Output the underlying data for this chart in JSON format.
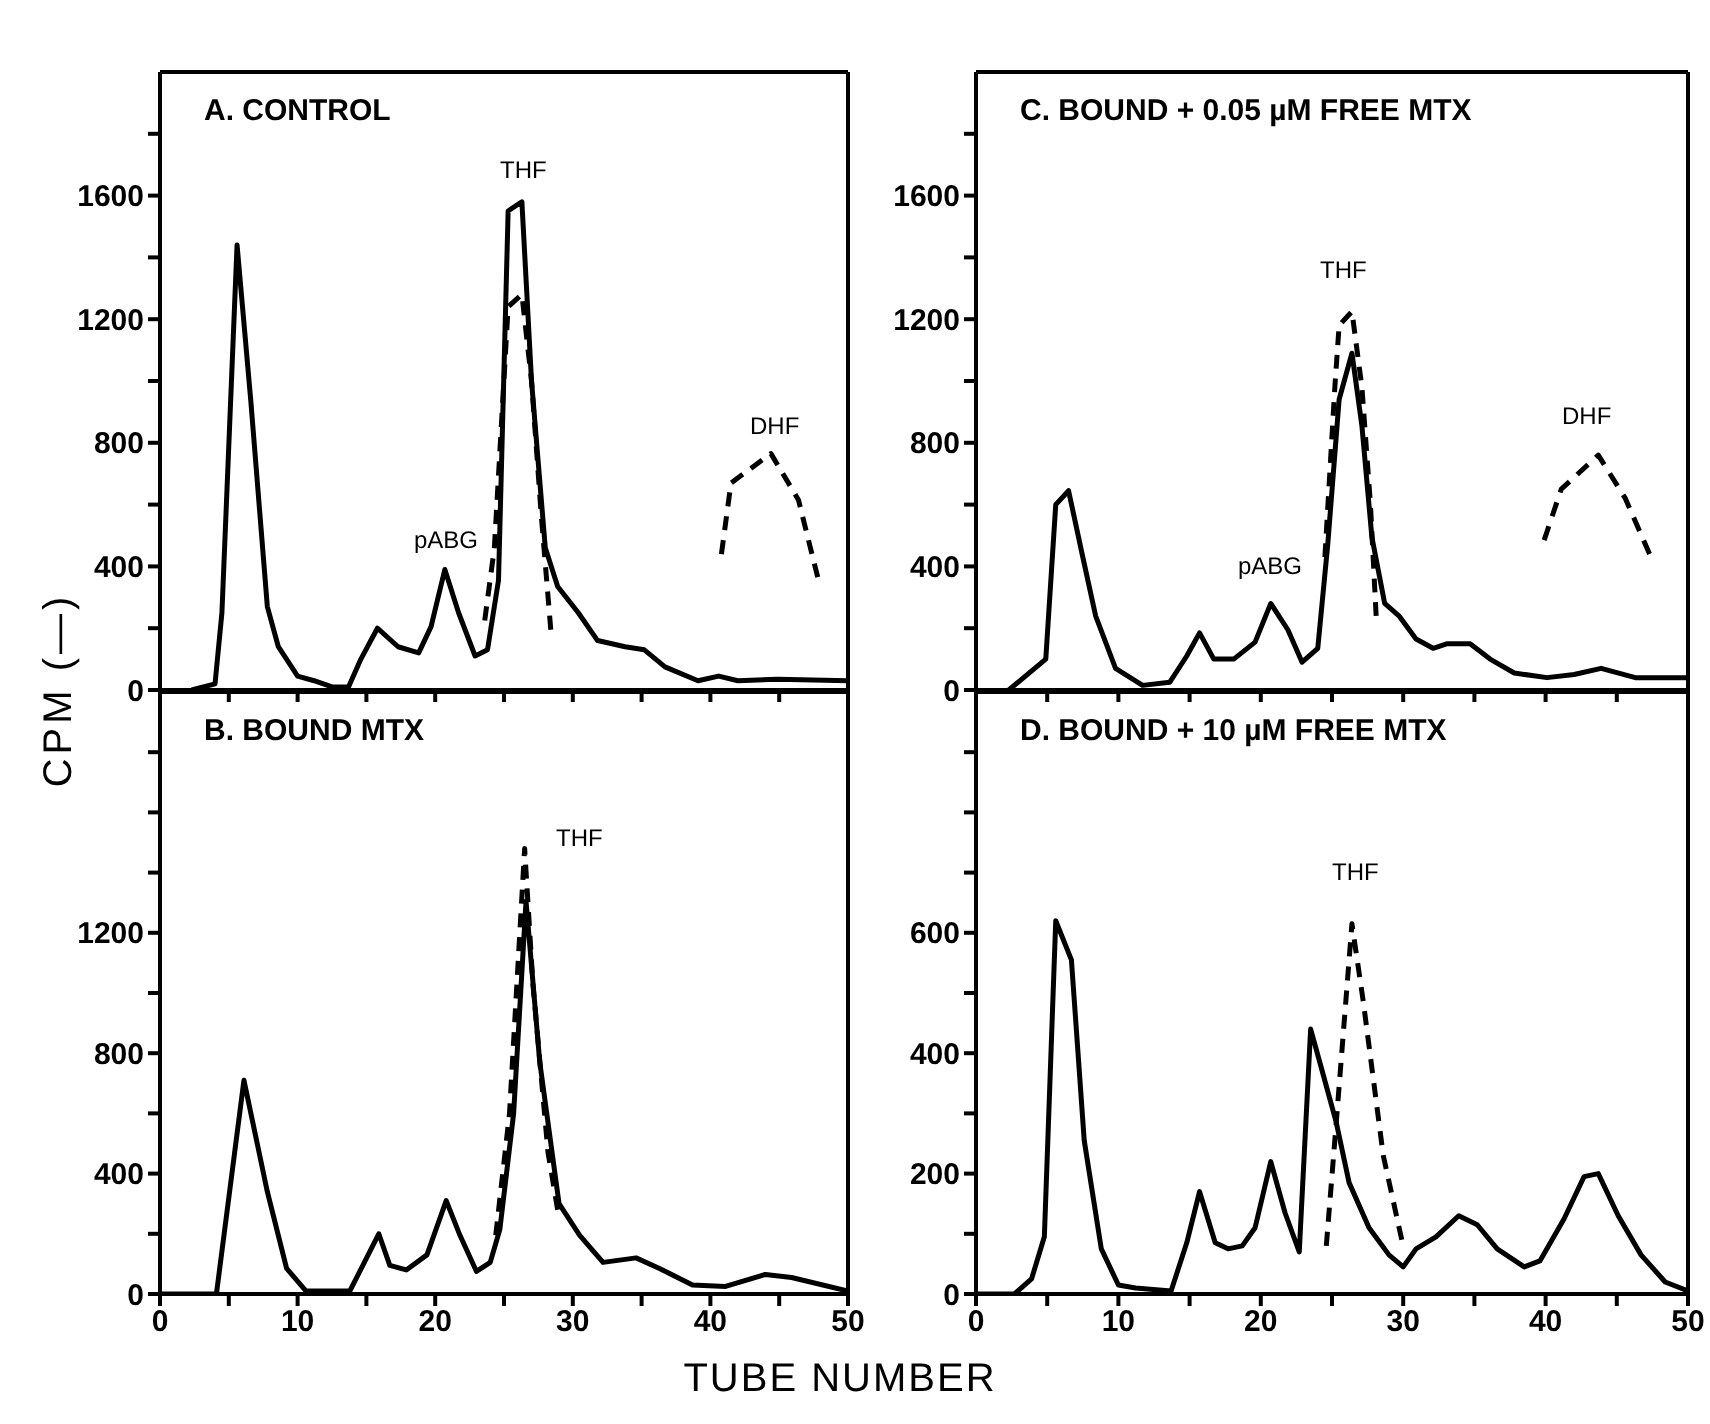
{
  "chart_data": [
    {
      "type": "line",
      "title": "A. CONTROL",
      "ylabel": "CPM (—)",
      "xlim": [
        0,
        50
      ],
      "xticks": [
        {
          "value": 0,
          "label": null
        },
        {
          "value": 5,
          "label": null
        },
        {
          "value": 10,
          "label": null
        },
        {
          "value": 15,
          "label": null
        },
        {
          "value": 20,
          "label": null
        },
        {
          "value": 25,
          "label": null
        },
        {
          "value": 30,
          "label": null
        },
        {
          "value": 35,
          "label": null
        },
        {
          "value": 40,
          "label": null
        },
        {
          "value": 45,
          "label": null
        },
        {
          "value": 50,
          "label": null
        }
      ],
      "ylim": [
        0,
        2000
      ],
      "yticks": [
        0,
        {
          "value": 200,
          "label": null
        },
        400,
        {
          "value": 600,
          "label": null
        },
        800,
        {
          "value": 1000,
          "label": null
        },
        1200,
        {
          "value": 1400,
          "label": null
        },
        1600,
        {
          "value": 1800,
          "label": null
        }
      ],
      "tick_labels": "y",
      "series": [
        {
          "color": "#000000",
          "line_style": "solid",
          "x": [
            2.3,
            4,
            4.5,
            5.6,
            6.6,
            7.8,
            8.6,
            10,
            11.2,
            12.5,
            13.7,
            14.6,
            15.8,
            17.3,
            18.8,
            19.7,
            20.7,
            21.7,
            22.9,
            23.8,
            24.6,
            25.3,
            26.3,
            27,
            28,
            28.9,
            30.4,
            31.8,
            33.8,
            35.2,
            36.7,
            39.1,
            40.6,
            42,
            44.9,
            50
          ],
          "values": [
            0,
            20,
            250,
            1440,
            935,
            270,
            140,
            45,
            30,
            10,
            10,
            100,
            200,
            140,
            120,
            205,
            390,
            250,
            110,
            130,
            355,
            1550,
            1580,
            1000,
            460,
            335,
            250,
            160,
            140,
            130,
            75,
            30,
            45,
            30,
            35,
            30
          ]
        },
        {
          "color": "#000000",
          "line_style": "dashed",
          "x": [
            23.6,
            24.3,
            25.3,
            26.3,
            27,
            27.7,
            28.4
          ],
          "values": [
            225,
            460,
            1240,
            1280,
            1000,
            570,
            195
          ]
        },
        {
          "color": "#000000",
          "line_style": "dashed",
          "x": [
            40.8,
            41.5,
            44.4,
            46.4,
            47.8
          ],
          "values": [
            440,
            670,
            765,
            615,
            365
          ]
        }
      ],
      "annotations": [
        "THF",
        "pABG",
        "DHF"
      ]
    },
    {
      "type": "line",
      "title": "B. BOUND MTX",
      "xlabel": "TUBE NUMBER",
      "xlim": [
        0,
        50
      ],
      "xticks": [
        0,
        {
          "value": 5,
          "label": null
        },
        10,
        {
          "value": 15,
          "label": null
        },
        20,
        {
          "value": 25,
          "label": null
        },
        30,
        {
          "value": 35,
          "label": null
        },
        40,
        {
          "value": 45,
          "label": null
        },
        50
      ],
      "ylim": [
        0,
        2000
      ],
      "yticks": [
        0,
        {
          "value": 200,
          "label": null
        },
        400,
        {
          "value": 600,
          "label": null
        },
        800,
        {
          "value": 1000,
          "label": null
        },
        1200,
        {
          "value": 1400,
          "label": null
        },
        {
          "value": 1600,
          "label": null
        },
        {
          "value": 1800,
          "label": null
        }
      ],
      "series": [
        {
          "color": "#000000",
          "line_style": "solid",
          "x": [
            0,
            4.1,
            6.1,
            7.8,
            9.2,
            10.6,
            13.8,
            15.9,
            16.7,
            17.9,
            19.4,
            20.8,
            21.8,
            23,
            24,
            24.7,
            25.7,
            26.6,
            27.6,
            29,
            30.5,
            32.2,
            34.6,
            36.3,
            38.7,
            41.1,
            44,
            45.9,
            50
          ],
          "values": [
            0,
            0,
            710,
            340,
            85,
            10,
            10,
            200,
            95,
            80,
            130,
            310,
            195,
            75,
            105,
            215,
            600,
            1305,
            770,
            300,
            195,
            105,
            120,
            85,
            30,
            25,
            65,
            55,
            10
          ]
        },
        {
          "color": "#000000",
          "line_style": "dashed",
          "x": [
            24.4,
            25.4,
            26.5,
            27.1,
            28.2,
            28.9
          ],
          "values": [
            195,
            600,
            1480,
            1030,
            470,
            280
          ]
        }
      ],
      "annotations": [
        "THF"
      ]
    },
    {
      "type": "line",
      "title": "C. BOUND + 0.05 µM FREE MTX",
      "xlim": [
        0,
        50
      ],
      "xticks": [
        {
          "value": 0,
          "label": null
        },
        {
          "value": 5,
          "label": null
        },
        {
          "value": 10,
          "label": null
        },
        {
          "value": 15,
          "label": null
        },
        {
          "value": 20,
          "label": null
        },
        {
          "value": 25,
          "label": null
        },
        {
          "value": 30,
          "label": null
        },
        {
          "value": 35,
          "label": null
        },
        {
          "value": 40,
          "label": null
        },
        {
          "value": 45,
          "label": null
        },
        {
          "value": 50,
          "label": null
        }
      ],
      "ylim": [
        0,
        2000
      ],
      "yticks": [
        0,
        {
          "value": 200,
          "label": null
        },
        400,
        {
          "value": 600,
          "label": null
        },
        800,
        {
          "value": 1000,
          "label": null
        },
        1200,
        {
          "value": 1400,
          "label": null
        },
        1600,
        {
          "value": 1800,
          "label": null
        }
      ],
      "tick_labels": "y",
      "series": [
        {
          "color": "#000000",
          "line_style": "solid",
          "x": [
            2.3,
            4.9,
            5.6,
            6.5,
            7.5,
            8.4,
            9.8,
            11.7,
            13.6,
            14.8,
            15.7,
            16.7,
            18.1,
            19.6,
            20.7,
            21.9,
            22.9,
            24,
            24.7,
            25.5,
            26.4,
            27.1,
            27.8,
            28.7,
            29.7,
            30.9,
            32.1,
            33.1,
            34.7,
            36.1,
            37.8,
            40.1,
            42,
            43.9,
            46.3,
            50
          ],
          "values": [
            0,
            100,
            600,
            645,
            430,
            240,
            70,
            15,
            25,
            110,
            185,
            100,
            100,
            155,
            280,
            195,
            90,
            135,
            470,
            940,
            1090,
            855,
            495,
            280,
            240,
            165,
            135,
            150,
            150,
            100,
            55,
            40,
            50,
            70,
            40,
            40
          ]
        },
        {
          "color": "#000000",
          "line_style": "dashed",
          "x": [
            24.5,
            25.2,
            25.5,
            26.4,
            27.1,
            27.7,
            28.1
          ],
          "values": [
            430,
            980,
            1180,
            1225,
            980,
            600,
            240
          ]
        },
        {
          "color": "#000000",
          "line_style": "dashed",
          "x": [
            39.9,
            41.1,
            43.7,
            45.6,
            47.3
          ],
          "values": [
            485,
            650,
            760,
            620,
            440
          ]
        }
      ],
      "annotations": [
        "THF",
        "pABG",
        "DHF"
      ]
    },
    {
      "type": "line",
      "title": "D. BOUND + 10 µM FREE MTX",
      "xlim": [
        0,
        50
      ],
      "xticks": [
        0,
        {
          "value": 5,
          "label": null
        },
        10,
        {
          "value": 15,
          "label": null
        },
        20,
        {
          "value": 25,
          "label": null
        },
        30,
        {
          "value": 35,
          "label": null
        },
        40,
        {
          "value": 45,
          "label": null
        },
        50
      ],
      "ylim": [
        0,
        1000
      ],
      "yticks": [
        0,
        {
          "value": 100,
          "label": null
        },
        200,
        {
          "value": 300,
          "label": null
        },
        400,
        {
          "value": 500,
          "label": null
        },
        600,
        {
          "value": 700,
          "label": null
        },
        {
          "value": 800,
          "label": null
        },
        {
          "value": 900,
          "label": null
        }
      ],
      "series": [
        {
          "color": "#000000",
          "line_style": "solid",
          "x": [
            0,
            2.7,
            3.9,
            4.8,
            5.6,
            6.7,
            7.6,
            8.8,
            10,
            11.2,
            13.7,
            14.8,
            15.7,
            16.8,
            17.7,
            18.7,
            19.6,
            20.7,
            21.7,
            22.7,
            23.5,
            24.2,
            25.3,
            26.2,
            27.6,
            29,
            30,
            30.9,
            32.3,
            33.9,
            35.2,
            36.6,
            38.5,
            39.6,
            41.3,
            42.7,
            43.7,
            45.1,
            46.7,
            48.4,
            50
          ],
          "values": [
            0,
            0,
            25,
            95,
            620,
            555,
            255,
            75,
            15,
            10,
            5,
            85,
            170,
            85,
            75,
            80,
            110,
            220,
            135,
            70,
            440,
            380,
            285,
            185,
            110,
            65,
            45,
            75,
            95,
            130,
            115,
            75,
            45,
            55,
            125,
            195,
            200,
            130,
            65,
            20,
            5
          ]
        },
        {
          "color": "#000000",
          "line_style": "dashed",
          "x": [
            24.6,
            25.3,
            26.4,
            27.2,
            28.6,
            29.9
          ],
          "values": [
            80,
            285,
            615,
            485,
            230,
            90
          ]
        }
      ],
      "annotations": [
        "THF"
      ]
    }
  ]
}
